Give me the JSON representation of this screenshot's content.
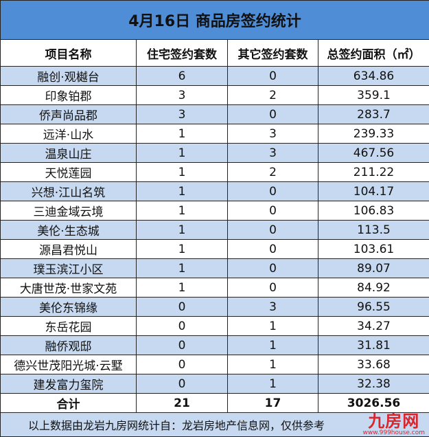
{
  "title": "4月16日 商品房签约统计",
  "headers": [
    "项目名称",
    "住宅签约套数",
    "其它签约套数",
    "总签约面积（㎡）"
  ],
  "rows": [
    [
      "融创·观樾台",
      "6",
      "0",
      "634.86"
    ],
    [
      "印象铂郡",
      "3",
      "2",
      "359.1"
    ],
    [
      "侨声尚品郡",
      "3",
      "0",
      "283.7"
    ],
    [
      "远洋·山水",
      "1",
      "3",
      "239.33"
    ],
    [
      "温泉山庄",
      "1",
      "3",
      "467.56"
    ],
    [
      "天悦莲园",
      "1",
      "2",
      "211.22"
    ],
    [
      "兴想·江山名筑",
      "1",
      "0",
      "104.17"
    ],
    [
      "三迪金域云境",
      "1",
      "0",
      "106.83"
    ],
    [
      "美伦·生态城",
      "1",
      "0",
      "113.5"
    ],
    [
      "源昌君悦山",
      "1",
      "0",
      "103.61"
    ],
    [
      "璞玉滨江小区",
      "1",
      "0",
      "89.07"
    ],
    [
      "大唐世茂·世家文苑",
      "1",
      "0",
      "84.92"
    ],
    [
      "美伦东锦缘",
      "0",
      "3",
      "96.55"
    ],
    [
      "东岳花园",
      "0",
      "1",
      "34.27"
    ],
    [
      "融侨观邸",
      "0",
      "1",
      "31.81"
    ],
    [
      "德兴世茂阳光城·云墅",
      "0",
      "1",
      "33.68"
    ],
    [
      "建发富力玺院",
      "0",
      "1",
      "32.38"
    ]
  ],
  "total": [
    "合计",
    "21",
    "17",
    "3026.56"
  ],
  "footer": "以上数据由龙岩九房网统计自：龙岩房地产信息网，仅供参考",
  "watermark": {
    "logo": "九房网",
    "url": "www.999house.com"
  },
  "colors": {
    "title_bg": "#4f8dd6",
    "row_alt": "#c6d9f0",
    "watermark": "#d9262c"
  }
}
